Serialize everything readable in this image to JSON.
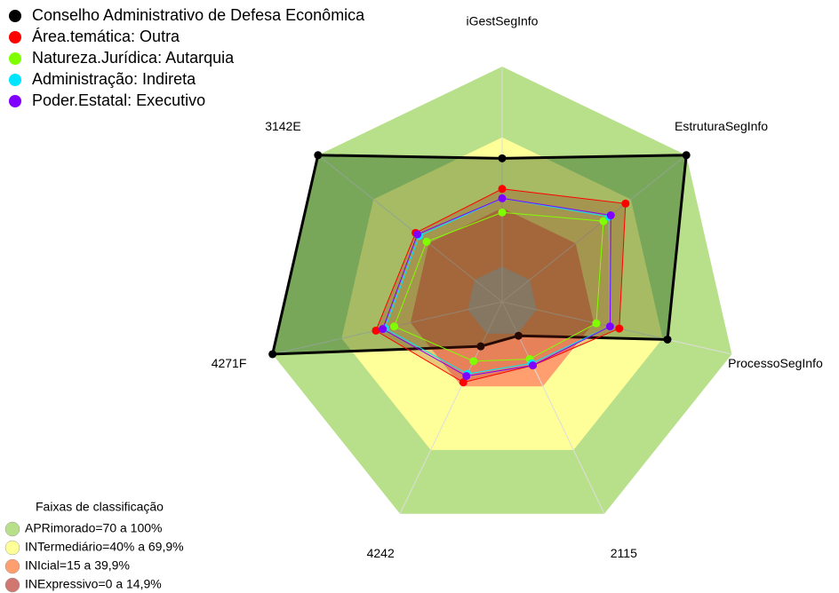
{
  "chart_data": {
    "type": "radar",
    "categories": [
      "iGestSegInfo",
      "EstruturaSegInfo",
      "ProcessoSegInfo",
      "2115",
      "4242",
      "4271F",
      "3142E"
    ],
    "ylim": [
      0,
      100
    ],
    "series": [
      {
        "name": "Conselho Administrativo de Defesa Econômica",
        "color": "#000000",
        "values": [
          61,
          100,
          72,
          16,
          21,
          100,
          100
        ]
      },
      {
        "name": "Área.temática: Outra",
        "color": "#ff0000",
        "values": [
          48,
          67,
          51,
          30,
          38,
          55,
          47
        ]
      },
      {
        "name": "Natureza.Jurídica: Autarquia",
        "color": "#80ff00",
        "values": [
          38,
          55,
          41,
          27,
          28,
          47,
          41
        ]
      },
      {
        "name": "Administração: Indireta",
        "color": "#00e5ff",
        "values": [
          44,
          58,
          47,
          29,
          34,
          51,
          45
        ]
      },
      {
        "name": "Poder.Estatal: Executivo",
        "color": "#8000ff",
        "values": [
          44,
          59,
          47,
          30,
          35,
          52,
          46
        ]
      }
    ],
    "bands_title": "Faixas de classificação",
    "bands": [
      {
        "label": "APRimorado=70 a 100%",
        "color": "#b8e08a",
        "from": 70,
        "to": 100
      },
      {
        "label": "INTermediário=40% a 69,9%",
        "color": "#ffff99",
        "from": 40,
        "to": 69.9
      },
      {
        "label": "INIcial=15 a 39,9%",
        "color": "#ff9f70",
        "from": 15,
        "to": 39.9
      },
      {
        "label": "INExpressivo=0 a 14,9%",
        "color": "#d07870",
        "from": 0,
        "to": 14.9
      }
    ]
  }
}
